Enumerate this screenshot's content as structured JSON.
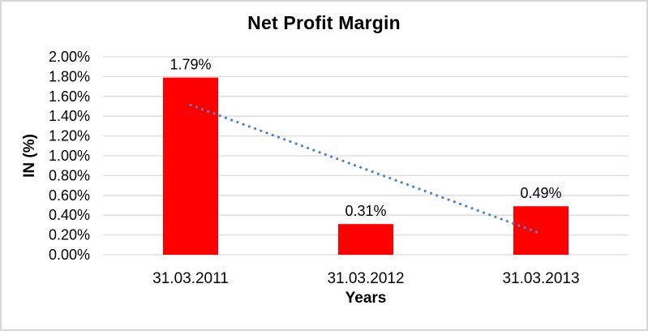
{
  "chart_data": {
    "type": "bar",
    "title": "Net Profit Margin",
    "xlabel": "Years",
    "ylabel": "IN (%)",
    "categories": [
      "31.03.2011",
      "31.03.2012",
      "31.03.2013"
    ],
    "values": [
      1.79,
      0.31,
      0.49
    ],
    "data_labels": [
      "1.79%",
      "0.31%",
      "0.49%"
    ],
    "ylim": [
      0,
      2.0
    ],
    "ytick_step": 0.2,
    "ytick_labels": [
      "0.00%",
      "0.20%",
      "0.40%",
      "0.60%",
      "0.80%",
      "1.00%",
      "1.20%",
      "1.40%",
      "1.60%",
      "1.80%",
      "2.00%"
    ],
    "grid": true,
    "legend": "none",
    "bar_color": "#ff0000",
    "gridline_color": "#d9d9d9",
    "text_color": "#000000",
    "trendline": {
      "type": "linear",
      "style": "dotted",
      "color": "#4e86c8"
    }
  }
}
